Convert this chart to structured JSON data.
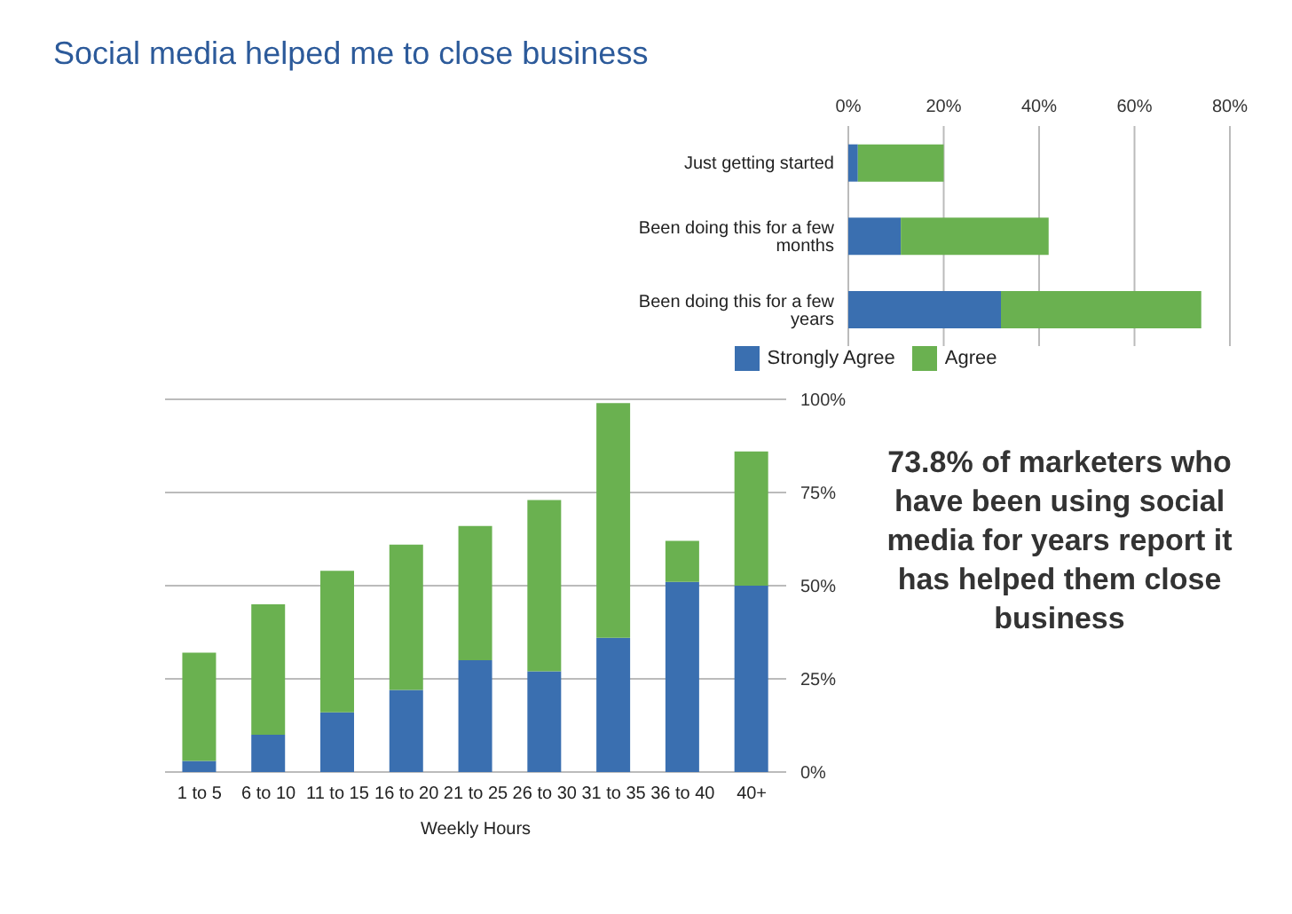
{
  "chart_data": [
    {
      "type": "bar",
      "title": "Social media helped me to close business",
      "orientation": "horizontal",
      "stacked": true,
      "categories": [
        "Just getting started",
        "Been doing this for a few months",
        "Been doing this for a few years"
      ],
      "series": [
        {
          "name": "Strongly Agree",
          "color": "#3a6fb0",
          "values": [
            2,
            11,
            32
          ]
        },
        {
          "name": "Agree",
          "color": "#6ab150",
          "values": [
            18,
            31,
            42
          ]
        }
      ],
      "xlim": [
        0,
        80
      ],
      "xticks": [
        {
          "value": 0,
          "label": "0%"
        },
        {
          "value": 20,
          "label": "20%"
        },
        {
          "value": 40,
          "label": "40%"
        },
        {
          "value": 60,
          "label": "60%"
        },
        {
          "value": 80,
          "label": "80%"
        }
      ],
      "grid": "x",
      "legend": "bottom"
    },
    {
      "type": "bar",
      "stacked": true,
      "xlabel": "Weekly Hours",
      "categories": [
        "1 to 5",
        "6 to 10",
        "11 to 15",
        "16 to 20",
        "21 to 25",
        "26 to 30",
        "31 to 35",
        "36 to 40",
        "40+"
      ],
      "series": [
        {
          "color": "#3a6fb0",
          "values": [
            3,
            10,
            16,
            22,
            30,
            27,
            36,
            51,
            50
          ]
        },
        {
          "color": "#6ab150",
          "values": [
            29,
            35,
            38,
            39,
            36,
            46,
            63,
            11,
            36
          ]
        }
      ],
      "ylim": [
        0,
        100
      ],
      "yticks": [
        {
          "value": 0,
          "label": "0%"
        },
        {
          "value": 25,
          "label": "25%"
        },
        {
          "value": 50,
          "label": "50%"
        },
        {
          "value": 75,
          "label": "75%"
        },
        {
          "value": 100,
          "label": "100%"
        }
      ],
      "grid": "y",
      "annotations": [
        "73.8% of marketers who have been using social media for years report it has helped them close business"
      ]
    }
  ]
}
